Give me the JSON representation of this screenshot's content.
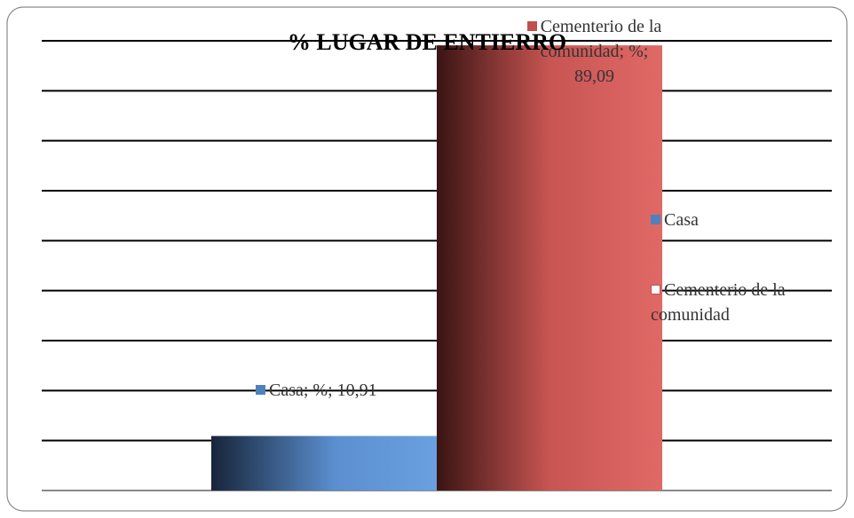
{
  "chart_data": {
    "type": "bar",
    "title": "% LUGAR DE ENTIERRO",
    "categories": [
      "%"
    ],
    "series": [
      {
        "name": "Casa",
        "color": "#4f81bd",
        "values": [
          10.91
        ],
        "value_labels": [
          "Casa; %; 10,91"
        ]
      },
      {
        "name": "Cementerio de la comunidad",
        "color": "#c0504d",
        "values": [
          89.09
        ],
        "value_labels": [
          "Cementerio de la comunidad; %; 89,09"
        ]
      }
    ],
    "ylim": [
      0,
      90
    ],
    "yticks": [
      0,
      10,
      20,
      30,
      40,
      50,
      60,
      70,
      80,
      90
    ],
    "grid": true,
    "legend": "right"
  }
}
